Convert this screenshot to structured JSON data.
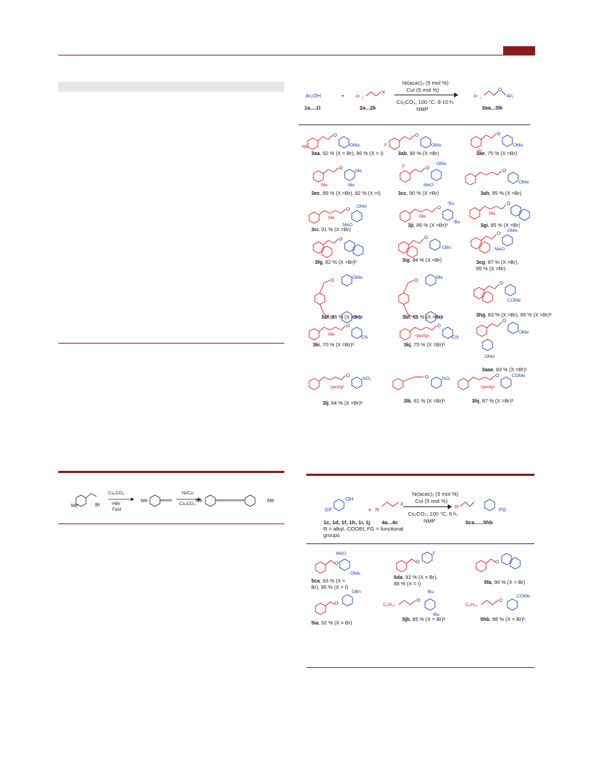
{
  "scheme1": {
    "reactant1": "Ar₁OH",
    "plus": "+",
    "reactant2": "Ar₂",
    "x": "X",
    "cond1": "Ni(acac)₂ (5 mol %)",
    "cond2": "CuI (5 mol %)",
    "cond3": "Cs₂CO₃, 100 °C, 8-10 h,",
    "cond4": "NMP",
    "product": "Ar₂",
    "product_ar1": "Ar₁",
    "label1": "1a....1l",
    "label2": "2a...2k",
    "label3": "3aa...3lk",
    "compounds": [
      {
        "id": "3aa",
        "text": ", 92 % (X = Br), 90 % (X = I)"
      },
      {
        "id": "3ab",
        "text": ", 90 % (X =Br)"
      },
      {
        "id": "3ae",
        "text": ", 75 % (X =Br)"
      },
      {
        "id": "3ec",
        "text": ", 89 % (X =Br), 92 % (X =I)"
      },
      {
        "id": "3cc",
        "text": ", 90 % (X =Br)"
      },
      {
        "id": "3ah",
        "text": ", 95 % (X =Br)"
      },
      {
        "id": "3ci",
        "text": ", 91 % (X =Br)"
      },
      {
        "id": "3ji",
        "text": ", 86 % (X =Br)ᵇ"
      },
      {
        "id": "3gi",
        "text": ", 85 % (X =Br)"
      },
      {
        "id": "3fg",
        "text": ", 82 % (X =Br)ᵇ"
      },
      {
        "id": "3ig",
        "text": ", 84 % (X =Br)"
      },
      {
        "id": "3cg",
        "text": ", 87 % (X =Br),"
      },
      {
        "id": "3cg_b",
        "text": "85 % (X =Br)"
      },
      {
        "id": "3af",
        "text": ", 86 % (X =Br)ᶜ"
      },
      {
        "id": "3bf",
        "text": ", 85 % (X =Br)ᶜ"
      },
      {
        "id": "3hg",
        "text": ", 83 % (X =Br), 85 % (X =Br)ᵇ"
      },
      {
        "id": "3ki",
        "text": ", 70 % (X =Br)ᵈ"
      },
      {
        "id": "3kj",
        "text": ", 75 % (X =Br)ᵈ"
      },
      {
        "id": "3aae",
        "text": ", 83 % (X =Br)ᶜ"
      },
      {
        "id": "3lj",
        "text": ", 84 % (X =Br)ᵇ"
      },
      {
        "id": "3lk",
        "text": ", 81 % (X =Br)ᵇ"
      },
      {
        "id": "3hj",
        "text": ", 87 % (X =Br)ᵇ"
      }
    ]
  },
  "scheme_left": {
    "reagent1": "Cs₂CO₃",
    "reagent2": "-HBr",
    "reagent3": "Fast",
    "reagent4": "Ni/Cu",
    "reagent5": "Cs₂CO₃",
    "br": "Br",
    "me": "Me"
  },
  "scheme2": {
    "reactant1": "GF",
    "oh": "OH",
    "plus": "+",
    "r": "R",
    "x": "X",
    "cond1": "Ni(acac)₂ (5 mol %)",
    "cond2": "CuI (5 mol %)",
    "cond3": "Cs₂CO₃, 100 °C, 6 h,",
    "cond4": "NMP",
    "product_r": "R",
    "product_fg": "FG",
    "label1": "1c, 1d, 1f, 1h, 1i, 1j",
    "label2": "4a...4c",
    "label3": "5ca......5hb",
    "note1": "R = alkyl, COOEt, FG = functional",
    "note2": "groups",
    "compounds": [
      {
        "id": "5ca",
        "text": ", 93 % (X ="
      },
      {
        "id": "5ca_b",
        "text": "Br), 90 % (X = I)"
      },
      {
        "id": "5da",
        "text": ", 92 % (X = Br),"
      },
      {
        "id": "5da_b",
        "text": "88 % (X = I)"
      },
      {
        "id": "5fa",
        "text": ", 90 % (X = Br)"
      },
      {
        "id": "5ia",
        "text": ", 92 % (X = Br)"
      },
      {
        "id": "5jb",
        "text": ", 85 % (X = Br)ᵇ"
      },
      {
        "id": "5hb",
        "text": ", 88 % (X = Br)ᵇ"
      }
    ]
  }
}
